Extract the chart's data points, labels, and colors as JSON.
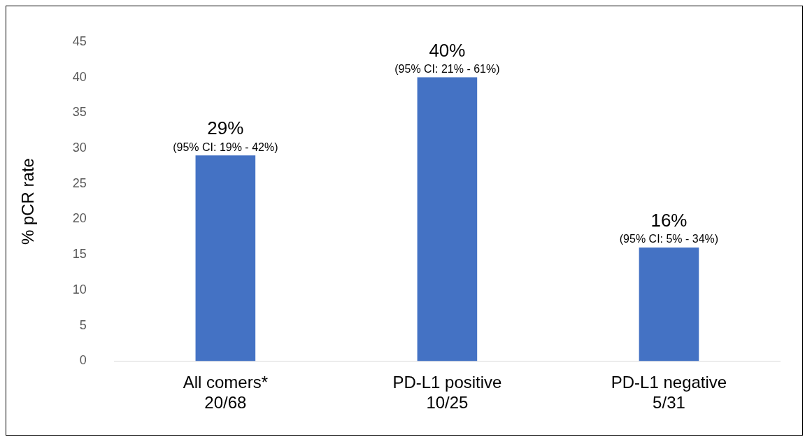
{
  "chart_data": {
    "type": "bar",
    "ylabel": "% pCR rate",
    "categories": [
      "All comers*\n20/68",
      "PD-L1 positive\n10/25",
      "PD-L1 negative\n5/31"
    ],
    "values": [
      29,
      40,
      16
    ],
    "color": "#4472c4",
    "value_labels": [
      "29%",
      "40%",
      "16%"
    ],
    "annotations": [
      {
        "text": "(95% CI: 19% - 42%)",
        "x": "All comers*\n20/68",
        "y": 29
      },
      {
        "text": "(95% CI: 21% - 61%)",
        "x": "PD-L1 positive\n10/25",
        "y": 40
      },
      {
        "text": "(95% CI: 5% - 34%)",
        "x": "PD-L1 negative\n5/31",
        "y": 16
      }
    ],
    "ylim": [
      0,
      45
    ],
    "yticks": [
      0,
      5,
      10,
      15,
      20,
      25,
      30,
      35,
      40,
      45
    ],
    "grid": false,
    "legend": false
  }
}
